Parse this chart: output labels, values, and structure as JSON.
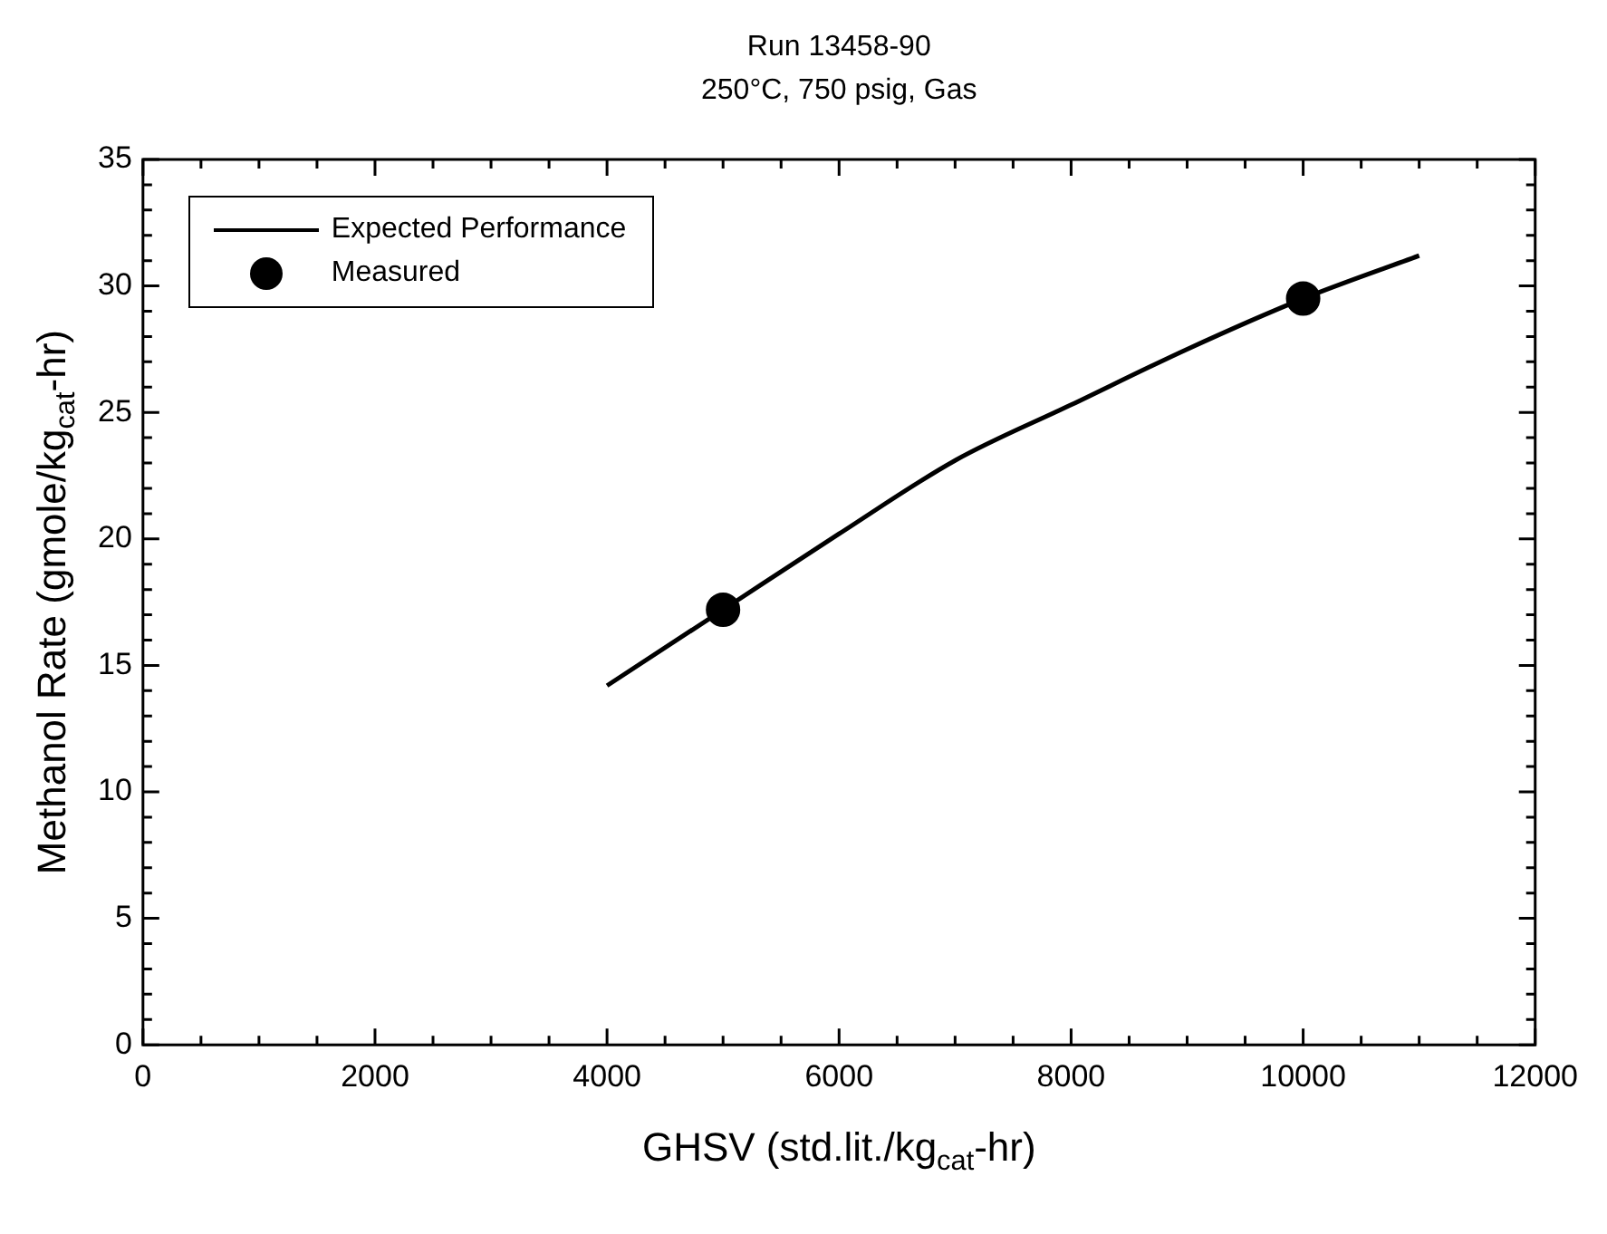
{
  "chart_data": {
    "type": "line",
    "title": "Run 13458-90",
    "subtitle": "250°C, 750 psig, Gas",
    "xlabel": "GHSV (std.lit./kg$_{cat}$-hr)",
    "ylabel": "Methanol Rate (gmole/kg$_{cat}$-hr)",
    "series": [
      {
        "name": "Expected Performance",
        "type": "line",
        "color": "#000000",
        "marker": "none",
        "x": [
          4000,
          5000,
          6000,
          7000,
          8000,
          9000,
          10000,
          11000
        ],
        "values": [
          14.2,
          17.2,
          20.2,
          23.1,
          25.3,
          27.5,
          29.5,
          31.2
        ]
      },
      {
        "name": "Measured",
        "type": "scatter",
        "color": "#000000",
        "marker": "circle",
        "x": [
          5000,
          10000
        ],
        "values": [
          17.2,
          29.5
        ]
      }
    ],
    "xlim": [
      0,
      12000
    ],
    "xticks": [
      0,
      {
        "value": 500,
        "label": null
      },
      {
        "value": 1000,
        "label": null
      },
      {
        "value": 1500,
        "label": null
      },
      2000,
      {
        "value": 2500,
        "label": null
      },
      {
        "value": 3000,
        "label": null
      },
      {
        "value": 3500,
        "label": null
      },
      4000,
      {
        "value": 4500,
        "label": null
      },
      {
        "value": 5000,
        "label": null
      },
      {
        "value": 5500,
        "label": null
      },
      6000,
      {
        "value": 6500,
        "label": null
      },
      {
        "value": 7000,
        "label": null
      },
      {
        "value": 7500,
        "label": null
      },
      8000,
      {
        "value": 8500,
        "label": null
      },
      {
        "value": 9000,
        "label": null
      },
      {
        "value": 9500,
        "label": null
      },
      10000,
      {
        "value": 10500,
        "label": null
      },
      {
        "value": 11000,
        "label": null
      },
      {
        "value": 11500,
        "label": null
      },
      12000
    ],
    "ylim": [
      0,
      35
    ],
    "yticks": [
      0,
      {
        "value": 1,
        "label": null
      },
      {
        "value": 2,
        "label": null
      },
      {
        "value": 3,
        "label": null
      },
      {
        "value": 4,
        "label": null
      },
      5,
      {
        "value": 6,
        "label": null
      },
      {
        "value": 7,
        "label": null
      },
      {
        "value": 8,
        "label": null
      },
      {
        "value": 9,
        "label": null
      },
      10,
      {
        "value": 11,
        "label": null
      },
      {
        "value": 12,
        "label": null
      },
      {
        "value": 13,
        "label": null
      },
      {
        "value": 14,
        "label": null
      },
      15,
      {
        "value": 16,
        "label": null
      },
      {
        "value": 17,
        "label": null
      },
      {
        "value": 18,
        "label": null
      },
      {
        "value": 19,
        "label": null
      },
      20,
      {
        "value": 21,
        "label": null
      },
      {
        "value": 22,
        "label": null
      },
      {
        "value": 23,
        "label": null
      },
      {
        "value": 24,
        "label": null
      },
      25,
      {
        "value": 26,
        "label": null
      },
      {
        "value": 27,
        "label": null
      },
      {
        "value": 28,
        "label": null
      },
      {
        "value": 29,
        "label": null
      },
      30,
      {
        "value": 31,
        "label": null
      },
      {
        "value": 32,
        "label": null
      },
      {
        "value": 33,
        "label": null
      },
      {
        "value": 34,
        "label": null
      },
      35
    ],
    "grid": false,
    "legend": "top left",
    "line_style": "solid"
  }
}
